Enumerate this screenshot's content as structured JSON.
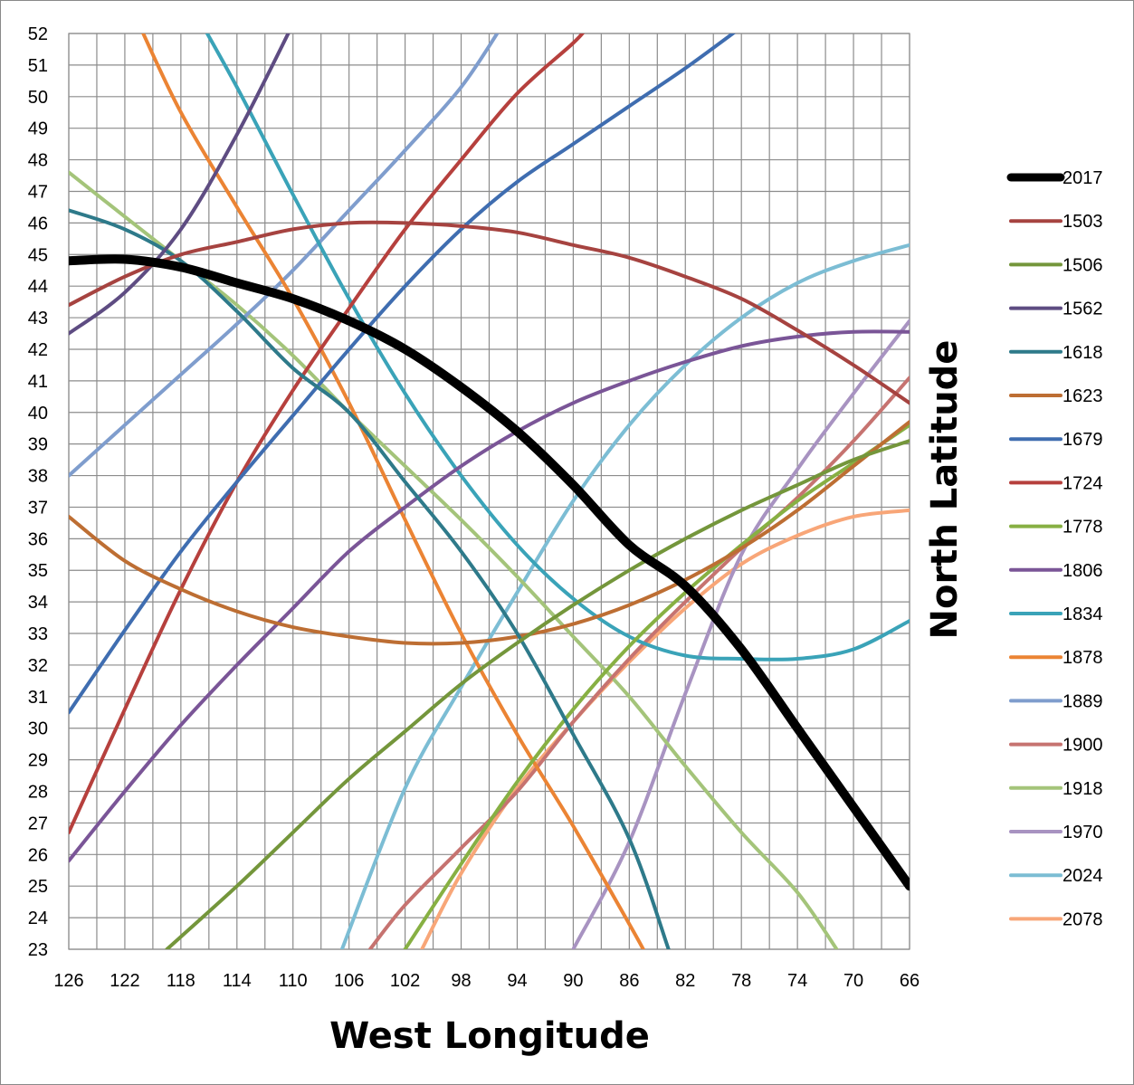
{
  "chart_data": {
    "type": "line",
    "xlabel": "West Longitude",
    "ylabel": "North Latitude",
    "xlim": [
      126,
      66
    ],
    "ylim": [
      23,
      52
    ],
    "x_ticks": [
      "126",
      "122",
      "118",
      "114",
      "110",
      "106",
      "102",
      "98",
      "94",
      "90",
      "86",
      "82",
      "78",
      "74",
      "70",
      "66"
    ],
    "y_ticks": [
      "23",
      "24",
      "25",
      "26",
      "27",
      "28",
      "29",
      "30",
      "31",
      "32",
      "33",
      "34",
      "35",
      "36",
      "37",
      "38",
      "39",
      "40",
      "41",
      "42",
      "43",
      "44",
      "45",
      "46",
      "47",
      "48",
      "49",
      "50",
      "51",
      "52"
    ],
    "grid": true,
    "legend_position": "right",
    "series": [
      {
        "name": "2017",
        "color": "#000000",
        "width": 10,
        "points": [
          [
            126,
            44.8
          ],
          [
            122,
            44.85
          ],
          [
            118,
            44.6
          ],
          [
            114,
            44.1
          ],
          [
            110,
            43.6
          ],
          [
            106,
            42.9
          ],
          [
            102,
            42.0
          ],
          [
            98,
            40.8
          ],
          [
            94,
            39.4
          ],
          [
            90,
            37.7
          ],
          [
            86,
            35.8
          ],
          [
            82,
            34.5
          ],
          [
            78,
            32.5
          ],
          [
            74,
            30.0
          ],
          [
            70,
            27.5
          ],
          [
            66,
            25.0
          ]
        ]
      },
      {
        "name": "1503",
        "color": "#A64340",
        "width": 4,
        "points": [
          [
            126,
            43.4
          ],
          [
            122,
            44.3
          ],
          [
            118,
            45.0
          ],
          [
            114,
            45.4
          ],
          [
            110,
            45.8
          ],
          [
            106,
            46.0
          ],
          [
            102,
            46.0
          ],
          [
            98,
            45.9
          ],
          [
            94,
            45.7
          ],
          [
            90,
            45.3
          ],
          [
            86,
            44.9
          ],
          [
            82,
            44.3
          ],
          [
            78,
            43.6
          ],
          [
            74,
            42.6
          ],
          [
            70,
            41.5
          ],
          [
            66,
            40.3
          ]
        ]
      },
      {
        "name": "1506",
        "color": "#74963B",
        "width": 4,
        "points": [
          [
            119,
            23.0
          ],
          [
            114,
            25.0
          ],
          [
            110,
            26.7
          ],
          [
            106,
            28.4
          ],
          [
            102,
            29.9
          ],
          [
            98,
            31.4
          ],
          [
            94,
            32.7
          ],
          [
            90,
            33.9
          ],
          [
            86,
            35.0
          ],
          [
            82,
            36.0
          ],
          [
            78,
            36.9
          ],
          [
            74,
            37.7
          ],
          [
            70,
            38.5
          ],
          [
            66,
            39.1
          ]
        ]
      },
      {
        "name": "1562",
        "color": "#5E4C82",
        "width": 4,
        "points": [
          [
            126,
            42.5
          ],
          [
            122,
            43.8
          ],
          [
            118,
            45.8
          ],
          [
            114,
            48.8
          ],
          [
            110,
            52.3
          ]
        ]
      },
      {
        "name": "1618",
        "color": "#2E7A8A",
        "width": 4,
        "points": [
          [
            126,
            46.4
          ],
          [
            122,
            45.8
          ],
          [
            118,
            44.8
          ],
          [
            114,
            43.2
          ],
          [
            110,
            41.4
          ],
          [
            106,
            40.0
          ],
          [
            102,
            37.8
          ],
          [
            98,
            35.6
          ],
          [
            94,
            33.0
          ],
          [
            90,
            29.8
          ],
          [
            86,
            26.5
          ],
          [
            83.2,
            23.0
          ]
        ]
      },
      {
        "name": "1623",
        "color": "#BD6E33",
        "width": 4,
        "points": [
          [
            126,
            36.7
          ],
          [
            122,
            35.3
          ],
          [
            118,
            34.4
          ],
          [
            114,
            33.7
          ],
          [
            110,
            33.2
          ],
          [
            106,
            32.9
          ],
          [
            102,
            32.7
          ],
          [
            98,
            32.7
          ],
          [
            94,
            32.9
          ],
          [
            90,
            33.3
          ],
          [
            86,
            33.9
          ],
          [
            82,
            34.7
          ],
          [
            78,
            35.7
          ],
          [
            74,
            36.9
          ],
          [
            70,
            38.3
          ],
          [
            66,
            39.7
          ]
        ]
      },
      {
        "name": "1679",
        "color": "#3F6DB0",
        "width": 4,
        "points": [
          [
            126,
            30.5
          ],
          [
            122,
            33.1
          ],
          [
            118,
            35.6
          ],
          [
            114,
            37.8
          ],
          [
            110,
            39.9
          ],
          [
            106,
            42.0
          ],
          [
            102,
            44.0
          ],
          [
            98,
            45.8
          ],
          [
            94,
            47.3
          ],
          [
            90,
            48.5
          ],
          [
            86,
            49.7
          ],
          [
            82,
            50.9
          ],
          [
            78,
            52.2
          ]
        ]
      },
      {
        "name": "1724",
        "color": "#B6403D",
        "width": 4,
        "points": [
          [
            126,
            26.7
          ],
          [
            122,
            30.6
          ],
          [
            118,
            34.4
          ],
          [
            114,
            37.8
          ],
          [
            110,
            40.7
          ],
          [
            106,
            43.3
          ],
          [
            102,
            45.8
          ],
          [
            98,
            48.0
          ],
          [
            94,
            50.1
          ],
          [
            90,
            51.7
          ],
          [
            89,
            52.2
          ]
        ]
      },
      {
        "name": "1778",
        "color": "#87B043",
        "width": 4,
        "points": [
          [
            102,
            23.0
          ],
          [
            98,
            25.7
          ],
          [
            94,
            28.3
          ],
          [
            90,
            30.6
          ],
          [
            86,
            32.6
          ],
          [
            82,
            34.3
          ],
          [
            78,
            35.8
          ],
          [
            74,
            37.2
          ],
          [
            70,
            38.4
          ],
          [
            66,
            39.6
          ]
        ]
      },
      {
        "name": "1806",
        "color": "#7A5597",
        "width": 4,
        "points": [
          [
            126,
            25.8
          ],
          [
            122,
            28.0
          ],
          [
            118,
            30.1
          ],
          [
            114,
            32.0
          ],
          [
            110,
            33.8
          ],
          [
            106,
            35.6
          ],
          [
            102,
            37.0
          ],
          [
            98,
            38.3
          ],
          [
            94,
            39.4
          ],
          [
            90,
            40.3
          ],
          [
            86,
            41.0
          ],
          [
            82,
            41.6
          ],
          [
            78,
            42.1
          ],
          [
            74,
            42.4
          ],
          [
            70,
            42.55
          ],
          [
            66,
            42.55
          ]
        ]
      },
      {
        "name": "1834",
        "color": "#3AA3B8",
        "width": 4,
        "points": [
          [
            116.5,
            52.3
          ],
          [
            114,
            50.3
          ],
          [
            110,
            46.9
          ],
          [
            106,
            43.6
          ],
          [
            102,
            40.6
          ],
          [
            98,
            38.0
          ],
          [
            94,
            35.8
          ],
          [
            90,
            34.1
          ],
          [
            86,
            32.9
          ],
          [
            82,
            32.3
          ],
          [
            78,
            32.2
          ],
          [
            74,
            32.2
          ],
          [
            70,
            32.5
          ],
          [
            66,
            33.4
          ]
        ]
      },
      {
        "name": "1878",
        "color": "#EB8434",
        "width": 4,
        "points": [
          [
            121,
            52.3
          ],
          [
            118,
            49.5
          ],
          [
            114,
            46.5
          ],
          [
            110,
            43.6
          ],
          [
            106,
            40.3
          ],
          [
            102,
            36.6
          ],
          [
            98,
            33.0
          ],
          [
            94,
            29.8
          ],
          [
            90,
            26.9
          ],
          [
            86,
            23.8
          ],
          [
            85,
            23.0
          ]
        ]
      },
      {
        "name": "1889",
        "color": "#7F9DCD",
        "width": 4,
        "points": [
          [
            126,
            38.0
          ],
          [
            122,
            39.6
          ],
          [
            118,
            41.2
          ],
          [
            114,
            42.8
          ],
          [
            110,
            44.5
          ],
          [
            106,
            46.4
          ],
          [
            102,
            48.3
          ],
          [
            98,
            50.3
          ],
          [
            95,
            52.3
          ]
        ]
      },
      {
        "name": "1900",
        "color": "#C67370",
        "width": 4,
        "points": [
          [
            104.5,
            23.0
          ],
          [
            102,
            24.4
          ],
          [
            98,
            26.2
          ],
          [
            94,
            28.0
          ],
          [
            90,
            30.2
          ],
          [
            86,
            32.2
          ],
          [
            82,
            34.0
          ],
          [
            78,
            35.7
          ],
          [
            74,
            37.3
          ],
          [
            70,
            39.1
          ],
          [
            66,
            41.1
          ]
        ]
      },
      {
        "name": "1918",
        "color": "#A4C47A",
        "width": 4,
        "points": [
          [
            126,
            47.6
          ],
          [
            122,
            46.2
          ],
          [
            118,
            44.8
          ],
          [
            114,
            43.4
          ],
          [
            110,
            41.8
          ],
          [
            106,
            40.0
          ],
          [
            102,
            38.3
          ],
          [
            98,
            36.6
          ],
          [
            94,
            34.8
          ],
          [
            90,
            32.9
          ],
          [
            86,
            31.0
          ],
          [
            82,
            28.8
          ],
          [
            78,
            26.7
          ],
          [
            74,
            24.8
          ],
          [
            71.2,
            23.0
          ]
        ]
      },
      {
        "name": "1970",
        "color": "#A893C1",
        "width": 4,
        "points": [
          [
            90,
            23.0
          ],
          [
            86,
            26.4
          ],
          [
            82,
            31.1
          ],
          [
            78,
            35.5
          ],
          [
            74,
            38.2
          ],
          [
            70,
            40.6
          ],
          [
            66,
            42.9
          ]
        ]
      },
      {
        "name": "2024",
        "color": "#7CBDD4",
        "width": 4,
        "points": [
          [
            106.5,
            23.0
          ],
          [
            102,
            28.1
          ],
          [
            98,
            31.3
          ],
          [
            94,
            34.3
          ],
          [
            90,
            37.2
          ],
          [
            86,
            39.6
          ],
          [
            82,
            41.5
          ],
          [
            78,
            43.0
          ],
          [
            74,
            44.1
          ],
          [
            70,
            44.8
          ],
          [
            66,
            45.3
          ]
        ]
      },
      {
        "name": "2078",
        "color": "#F8A678",
        "width": 4,
        "points": [
          [
            100.8,
            23.0
          ],
          [
            98,
            25.4
          ],
          [
            94,
            28.1
          ],
          [
            90,
            30.2
          ],
          [
            86,
            32.1
          ],
          [
            82,
            33.8
          ],
          [
            78,
            35.2
          ],
          [
            74,
            36.1
          ],
          [
            70,
            36.7
          ],
          [
            66,
            36.9
          ]
        ]
      }
    ]
  }
}
